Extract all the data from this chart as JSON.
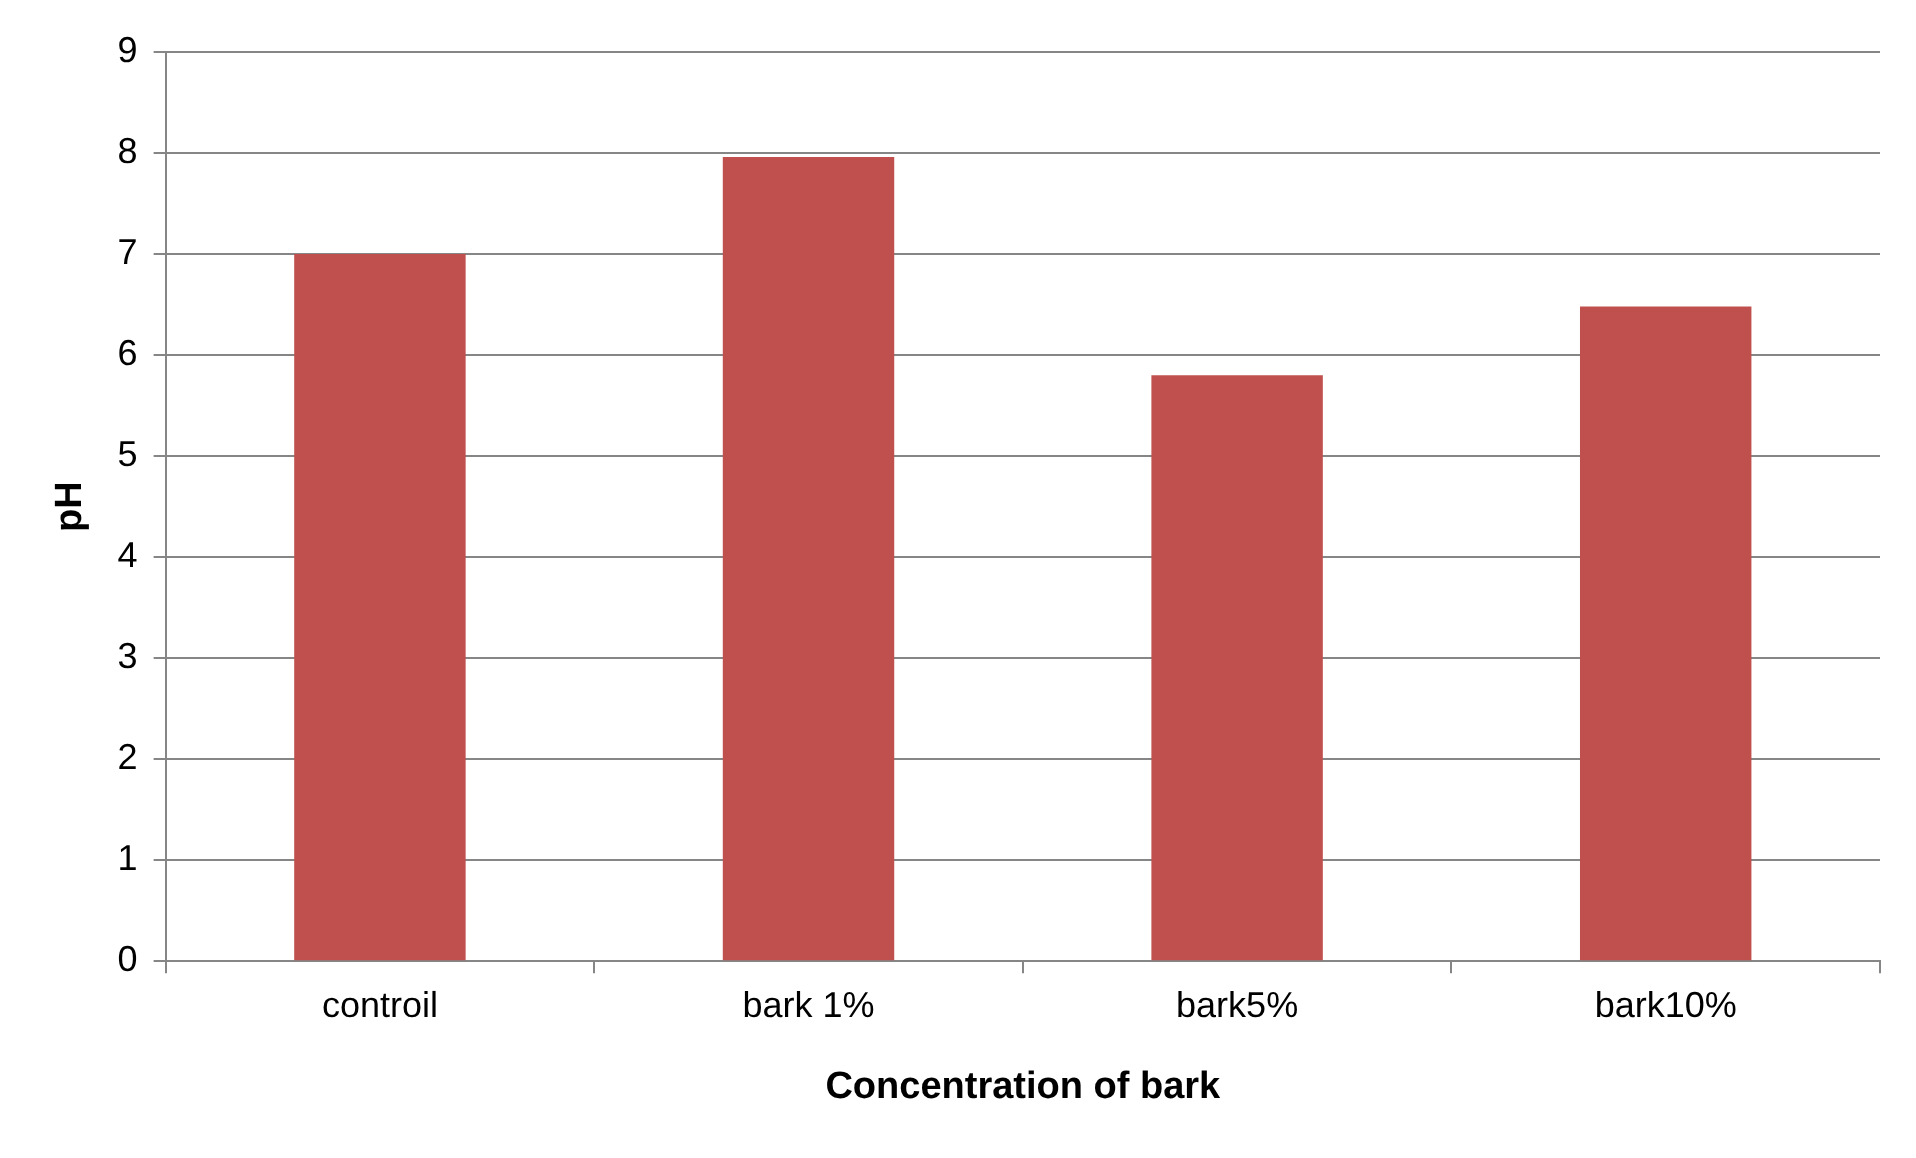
{
  "chart_data": {
    "type": "bar",
    "xlabel": "Concentration of bark",
    "ylabel": "pH",
    "categories": [
      "controil",
      "bark 1%",
      "bark5%",
      "bark10%"
    ],
    "values": [
      7.0,
      7.96,
      5.8,
      6.48
    ],
    "color": "#c0504d",
    "ylim": [
      0,
      9
    ],
    "yticks": [
      0,
      1,
      2,
      3,
      4,
      5,
      6,
      7,
      8,
      9
    ],
    "grid": "y",
    "legend": false
  }
}
